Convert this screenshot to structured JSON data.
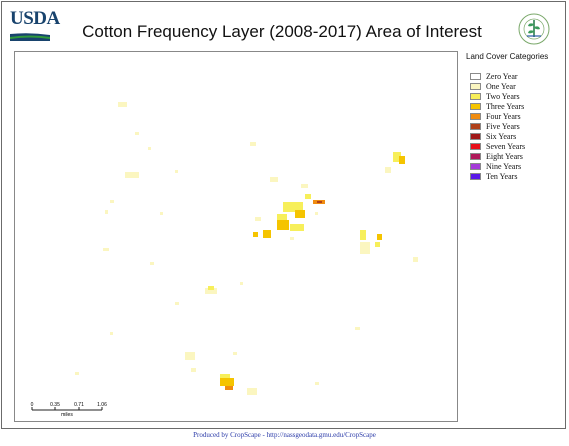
{
  "header": {
    "usda_logo_text": "USDA",
    "title": "Cotton Frequency Layer (2008-2017) Area of Interest"
  },
  "legend": {
    "title": "Land Cover Categories",
    "items": [
      {
        "label": "Zero Year",
        "color": "#ffffff"
      },
      {
        "label": "One Year",
        "color": "#fbf6c0"
      },
      {
        "label": "Two Years",
        "color": "#f7ef5a"
      },
      {
        "label": "Three Years",
        "color": "#f5c400"
      },
      {
        "label": "Four Years",
        "color": "#f08c10"
      },
      {
        "label": "Five Years",
        "color": "#b0401a"
      },
      {
        "label": "Six Years",
        "color": "#a01818"
      },
      {
        "label": "Seven Years",
        "color": "#e8101a"
      },
      {
        "label": "Eight Years",
        "color": "#b01a5a"
      },
      {
        "label": "Nine Years",
        "color": "#a43ad8"
      },
      {
        "label": "Ten Years",
        "color": "#5a1ae8"
      }
    ]
  },
  "scalebar": {
    "ticks": [
      "0",
      "0.35",
      "0.71",
      "1.06"
    ],
    "unit": "miles"
  },
  "footer": {
    "credit": "Produced by CropScape - http://nassgeodata.gmu.edu/CropScape"
  }
}
